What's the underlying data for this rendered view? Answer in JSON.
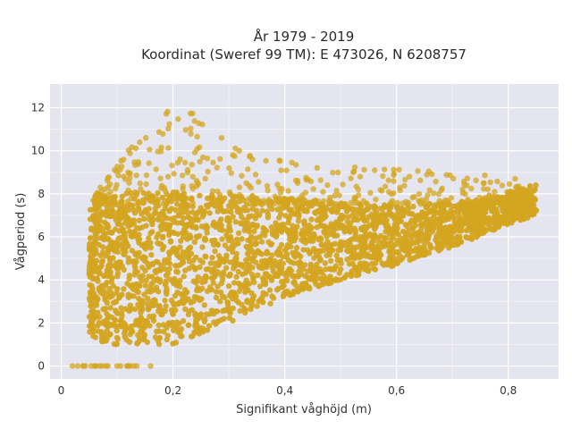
{
  "chart_data": {
    "type": "scatter",
    "title_line1": "År 1979 - 2019",
    "title_line2": "Koordinat (Sweref 99 TM): E 473026, N 6208757",
    "xlabel": "Signifikant våghöjd (m)",
    "ylabel": "Vågperiod (s)",
    "xlim": [
      -0.02,
      0.89
    ],
    "ylim": [
      -0.6,
      13.1
    ],
    "x_ticks": [
      0,
      0.2,
      0.4,
      0.6,
      0.8
    ],
    "x_tick_labels": [
      "0",
      "0,2",
      "0,4",
      "0,6",
      "0,8"
    ],
    "y_ticks": [
      0,
      2,
      4,
      6,
      8,
      10,
      12
    ],
    "y_tick_labels": [
      "0",
      "2",
      "4",
      "6",
      "8",
      "10",
      "12"
    ],
    "grid": true,
    "background": "#e5e5ef",
    "marker_color": "#d4a520",
    "point_cloud": {
      "description_bounds": [
        [
          0.02,
          0
        ],
        [
          0.05,
          1.5
        ],
        [
          0.08,
          1.0
        ],
        [
          0.12,
          1.0
        ],
        [
          0.2,
          1.0
        ],
        [
          0.3,
          2.0
        ],
        [
          0.4,
          3.2
        ],
        [
          0.5,
          4.0
        ],
        [
          0.6,
          4.7
        ],
        [
          0.7,
          5.5
        ],
        [
          0.8,
          6.6
        ],
        [
          0.85,
          7.0
        ]
      ],
      "upper_bounds": [
        [
          0.05,
          7.5
        ],
        [
          0.1,
          9.5
        ],
        [
          0.15,
          11.0
        ],
        [
          0.2,
          12.3
        ],
        [
          0.25,
          11.5
        ],
        [
          0.3,
          10.5
        ],
        [
          0.4,
          9.5
        ],
        [
          0.5,
          9.3
        ],
        [
          0.6,
          9.2
        ],
        [
          0.7,
          9.0
        ],
        [
          0.8,
          8.8
        ],
        [
          0.85,
          8.5
        ]
      ],
      "zero_period_points": [
        0.02,
        0.04,
        0.06,
        0.08,
        0.1,
        0.12,
        0.13,
        0.16
      ]
    }
  }
}
